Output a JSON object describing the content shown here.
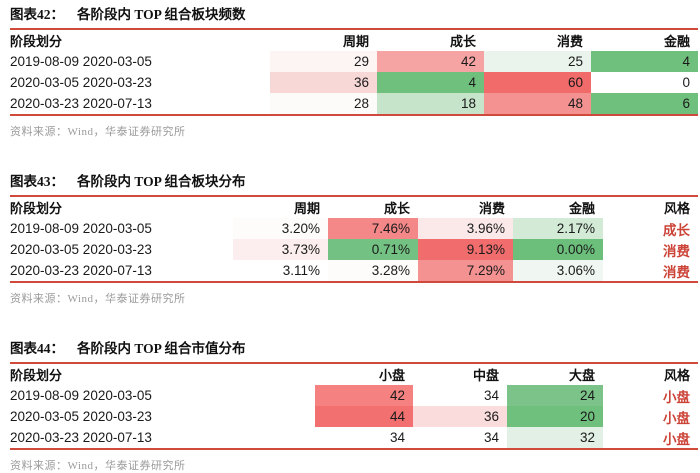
{
  "colors": {
    "page_bg": "#ffffff",
    "rule_red": "#cf4a3c",
    "style_red": "#cc4438",
    "title_text": "#111111",
    "data_text": "#1a1a1a",
    "source_text": "#9b9b9b"
  },
  "figures": [
    {
      "label": "图表42：",
      "title": "各阶段内 TOP 组合板块频数",
      "source": "资料来源：Wind，华泰证券研究所",
      "columns": [
        "阶段划分",
        "周期",
        "成长",
        "消费",
        "金融"
      ],
      "rows": [
        {
          "period": "2019-08-09 2020-03-05",
          "cells": [
            {
              "v": "29",
              "bg": "#fdf4f4"
            },
            {
              "v": "42",
              "bg": "#f5a3a3"
            },
            {
              "v": "25",
              "bg": "#eaf4ec"
            },
            {
              "v": "4",
              "bg": "#6fc07d"
            }
          ]
        },
        {
          "period": "2020-03-05 2020-03-23",
          "cells": [
            {
              "v": "36",
              "bg": "#f8d7d7"
            },
            {
              "v": "4",
              "bg": "#6fc07d"
            },
            {
              "v": "60",
              "bg": "#f16b6b"
            },
            {
              "v": "0",
              "bg": "#ffffff"
            }
          ]
        },
        {
          "period": "2020-03-23 2020-07-13",
          "cells": [
            {
              "v": "28",
              "bg": "#fdfafa"
            },
            {
              "v": "18",
              "bg": "#c6e4ca"
            },
            {
              "v": "48",
              "bg": "#f49191"
            },
            {
              "v": "6",
              "bg": "#6fc07d"
            }
          ]
        }
      ]
    },
    {
      "label": "图表43：",
      "title": "各阶段内 TOP 组合板块分布",
      "source": "资料来源：Wind，华泰证券研究所",
      "columns": [
        "阶段划分",
        "周期",
        "成长",
        "消费",
        "金融",
        "风格"
      ],
      "rows": [
        {
          "period": "2019-08-09 2020-03-05",
          "cells": [
            {
              "v": "3.20%",
              "bg": "#fefbfb"
            },
            {
              "v": "7.46%",
              "bg": "#f48787"
            },
            {
              "v": "3.96%",
              "bg": "#fbe9e9"
            },
            {
              "v": "2.17%",
              "bg": "#d2ead6"
            }
          ],
          "style": "成长"
        },
        {
          "period": "2020-03-05 2020-03-23",
          "cells": [
            {
              "v": "3.73%",
              "bg": "#fceeee"
            },
            {
              "v": "0.71%",
              "bg": "#73c283"
            },
            {
              "v": "9.13%",
              "bg": "#f16d6d"
            },
            {
              "v": "0.00%",
              "bg": "#6cbf7b"
            }
          ],
          "style": "消费"
        },
        {
          "period": "2020-03-23 2020-07-13",
          "cells": [
            {
              "v": "3.11%",
              "bg": "#ffffff"
            },
            {
              "v": "3.28%",
              "bg": "#fefbfb"
            },
            {
              "v": "7.29%",
              "bg": "#f49292"
            },
            {
              "v": "3.06%",
              "bg": "#f0f6f1"
            }
          ],
          "style": "消费"
        }
      ]
    },
    {
      "label": "图表44：",
      "title": "各阶段内 TOP 组合市值分布",
      "source": "资料来源：Wind，华泰证券研究所",
      "columns": [
        "阶段划分",
        "小盘",
        "中盘",
        "大盘",
        "风格"
      ],
      "rows": [
        {
          "period": "2019-08-09 2020-03-05",
          "cells": [
            {
              "v": "42",
              "bg": "#f58181"
            },
            {
              "v": "34",
              "bg": "#ffffff"
            },
            {
              "v": "24",
              "bg": "#7cc389"
            }
          ],
          "style": "小盘"
        },
        {
          "period": "2020-03-05 2020-03-23",
          "cells": [
            {
              "v": "44",
              "bg": "#f37070"
            },
            {
              "v": "36",
              "bg": "#fadcdc"
            },
            {
              "v": "20",
              "bg": "#6fc07d"
            }
          ],
          "style": "小盘"
        },
        {
          "period": "2020-03-23 2020-07-13",
          "cells": [
            {
              "v": "34",
              "bg": "#ffffff"
            },
            {
              "v": "34",
              "bg": "#ffffff"
            },
            {
              "v": "32",
              "bg": "#e2f0e5"
            }
          ],
          "style": "小盘"
        }
      ]
    }
  ],
  "chart_data": [
    {
      "type": "table",
      "title": "图表42： 各阶段内 TOP 组合板块频数",
      "columns": [
        "阶段划分",
        "周期",
        "成长",
        "消费",
        "金融"
      ],
      "rows": [
        [
          "2019-08-09 2020-03-05",
          29,
          42,
          25,
          4
        ],
        [
          "2020-03-05 2020-03-23",
          36,
          4,
          60,
          0
        ],
        [
          "2020-03-23 2020-07-13",
          28,
          18,
          48,
          6
        ]
      ],
      "note": "heatmap shading: high values red, low values green"
    },
    {
      "type": "table",
      "title": "图表43： 各阶段内 TOP 组合板块分布",
      "columns": [
        "阶段划分",
        "周期",
        "成长",
        "消费",
        "金融",
        "风格"
      ],
      "rows": [
        [
          "2019-08-09 2020-03-05",
          "3.20%",
          "7.46%",
          "3.96%",
          "2.17%",
          "成长"
        ],
        [
          "2020-03-05 2020-03-23",
          "3.73%",
          "0.71%",
          "9.13%",
          "0.00%",
          "消费"
        ],
        [
          "2020-03-23 2020-07-13",
          "3.11%",
          "3.28%",
          "7.29%",
          "3.06%",
          "消费"
        ]
      ],
      "note": "heatmap shading: high values red, low values green"
    },
    {
      "type": "table",
      "title": "图表44： 各阶段内 TOP 组合市值分布",
      "columns": [
        "阶段划分",
        "小盘",
        "中盘",
        "大盘",
        "风格"
      ],
      "rows": [
        [
          "2019-08-09 2020-03-05",
          42,
          34,
          24,
          "小盘"
        ],
        [
          "2020-03-05 2020-03-23",
          44,
          36,
          20,
          "小盘"
        ],
        [
          "2020-03-23 2020-07-13",
          34,
          34,
          32,
          "小盘"
        ]
      ],
      "note": "heatmap shading: high values red, low values green"
    }
  ]
}
